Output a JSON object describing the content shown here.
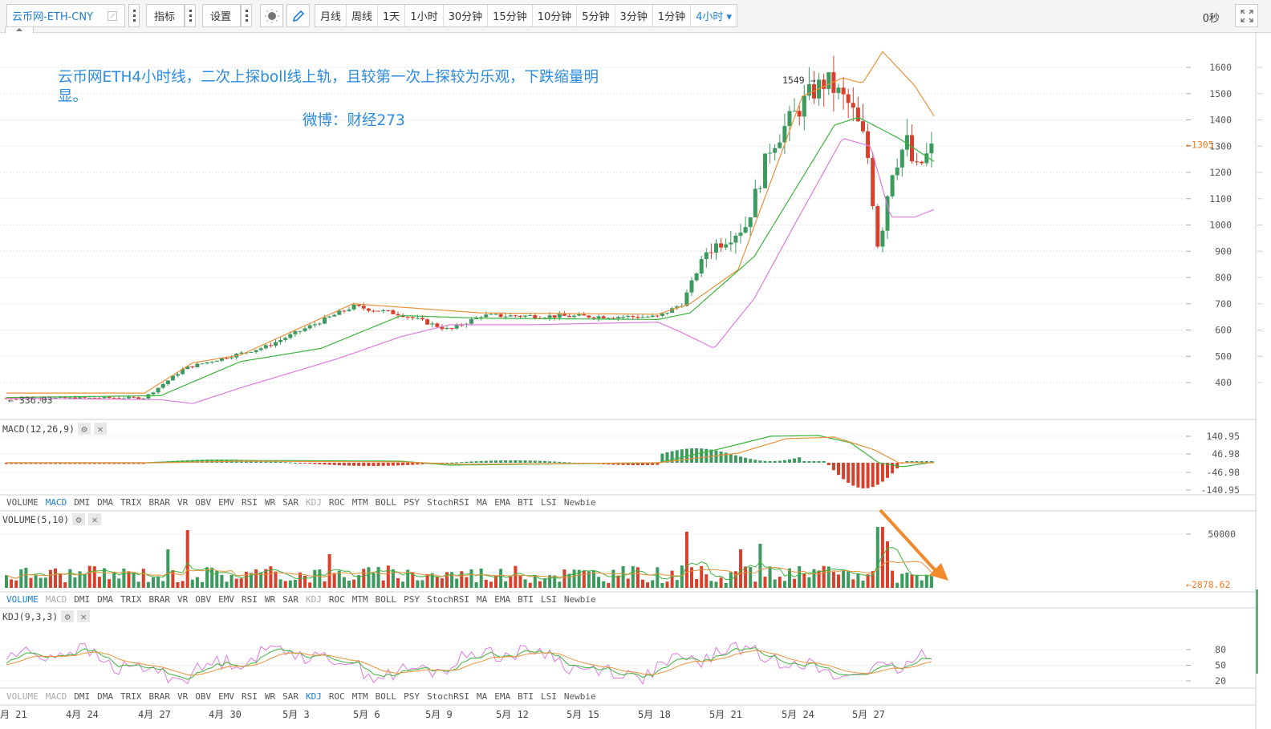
{
  "toolbar": {
    "symbol": "云币网-ETH-CNY",
    "indicators_label": "指标",
    "settings_label": "设置",
    "periods": [
      "月线",
      "周线",
      "1天",
      "1小时",
      "30分钟",
      "15分钟",
      "10分钟",
      "5分钟",
      "3分钟",
      "1分钟"
    ],
    "active_period": "4小时",
    "timer": "0秒"
  },
  "annotations": {
    "main_text": "云币网ETH4小时线，二次上探boll线上轨，且较第一次上探较为乐观，下跌缩量明显。",
    "weibo": "微博：财经273",
    "high_marker": "1549 →",
    "low_marker": "← 336.03"
  },
  "colors": {
    "up": "#3d9a5f",
    "down": "#d9402b",
    "boll_upper": "#e8923a",
    "boll_mid": "#3cb43c",
    "boll_lower": "#e07be0",
    "accent": "#1e7fd6",
    "price_tag": "#f07c2a"
  },
  "panes": {
    "macd": {
      "title": "MACD(12,26,9)",
      "ticks": [
        "140.95",
        "46.98",
        "-46.98",
        "-140.95"
      ]
    },
    "volume": {
      "title": "VOLUME(5,10)",
      "ticks": [
        "50000"
      ],
      "last_value": "←2878.62"
    },
    "kdj": {
      "title": "KDJ(9,3,3)",
      "ticks": [
        "80",
        "50",
        "20"
      ]
    }
  },
  "indicator_tabs": [
    "VOLUME",
    "MACD",
    "DMI",
    "DMA",
    "TRIX",
    "BRAR",
    "VR",
    "OBV",
    "EMV",
    "RSI",
    "WR",
    "SAR",
    "KDJ",
    "ROC",
    "MTM",
    "BOLL",
    "PSY",
    "StochRSI",
    "MA",
    "EMA",
    "BTI",
    "LSI",
    "Newbie"
  ],
  "chart_data": {
    "type": "candlestick",
    "title": "云币网-ETH-CNY 4小时",
    "price_axis": {
      "ticks": [
        1600,
        1500,
        1400,
        1300,
        1200,
        1100,
        1000,
        900,
        800,
        700,
        600,
        500,
        400
      ],
      "last_price": "←1305"
    },
    "x_labels": [
      "月 21",
      "4月 24",
      "4月 27",
      "4月 30",
      "5月 3",
      "5月 6",
      "5月 9",
      "5月 12",
      "5月 15",
      "5月 18",
      "5月 21",
      "5月 24",
      "5月 27"
    ],
    "x_label_positions": [
      0,
      82,
      172,
      260,
      352,
      440,
      530,
      618,
      706,
      795,
      884,
      974,
      1062
    ],
    "price_path_keypoints": [
      [
        8,
        340
      ],
      [
        180,
        342
      ],
      [
        230,
        455
      ],
      [
        330,
        535
      ],
      [
        440,
        690
      ],
      [
        500,
        660
      ],
      [
        560,
        600
      ],
      [
        600,
        655
      ],
      [
        820,
        650
      ],
      [
        850,
        700
      ],
      [
        880,
        900
      ],
      [
        930,
        1000
      ],
      [
        960,
        1300
      ],
      [
        1010,
        1500
      ],
      [
        1030,
        1549
      ],
      [
        1060,
        1450
      ],
      [
        1080,
        1300
      ],
      [
        1095,
        900
      ],
      [
        1110,
        1200
      ],
      [
        1130,
        1320
      ],
      [
        1140,
        1200
      ],
      [
        1165,
        1305
      ]
    ],
    "boll_upper_keypoints": [
      [
        8,
        360
      ],
      [
        180,
        360
      ],
      [
        240,
        475
      ],
      [
        300,
        505
      ],
      [
        440,
        700
      ],
      [
        600,
        665
      ],
      [
        820,
        660
      ],
      [
        860,
        700
      ],
      [
        920,
        830
      ],
      [
        1000,
        1490
      ],
      [
        1050,
        1560
      ],
      [
        1075,
        1540
      ],
      [
        1100,
        1660
      ],
      [
        1140,
        1530
      ],
      [
        1165,
        1410
      ]
    ],
    "boll_mid_keypoints": [
      [
        8,
        343
      ],
      [
        200,
        350
      ],
      [
        300,
        480
      ],
      [
        400,
        530
      ],
      [
        500,
        655
      ],
      [
        600,
        645
      ],
      [
        820,
        640
      ],
      [
        860,
        665
      ],
      [
        940,
        880
      ],
      [
        1000,
        1180
      ],
      [
        1040,
        1380
      ],
      [
        1070,
        1410
      ],
      [
        1120,
        1330
      ],
      [
        1165,
        1240
      ]
    ],
    "boll_lower_keypoints": [
      [
        8,
        340
      ],
      [
        200,
        335
      ],
      [
        240,
        320
      ],
      [
        300,
        380
      ],
      [
        420,
        490
      ],
      [
        500,
        575
      ],
      [
        560,
        620
      ],
      [
        660,
        620
      ],
      [
        820,
        630
      ],
      [
        850,
        590
      ],
      [
        890,
        530
      ],
      [
        940,
        720
      ],
      [
        990,
        1000
      ],
      [
        1050,
        1330
      ],
      [
        1085,
        1300
      ],
      [
        1110,
        1030
      ],
      [
        1140,
        1030
      ],
      [
        1165,
        1060
      ]
    ],
    "volume_max": 60000,
    "volume_note": "Declining volume on pullback, highlighted by orange arrow",
    "macd_range": [
      -188,
      188
    ],
    "kdj_range": [
      0,
      100
    ]
  }
}
